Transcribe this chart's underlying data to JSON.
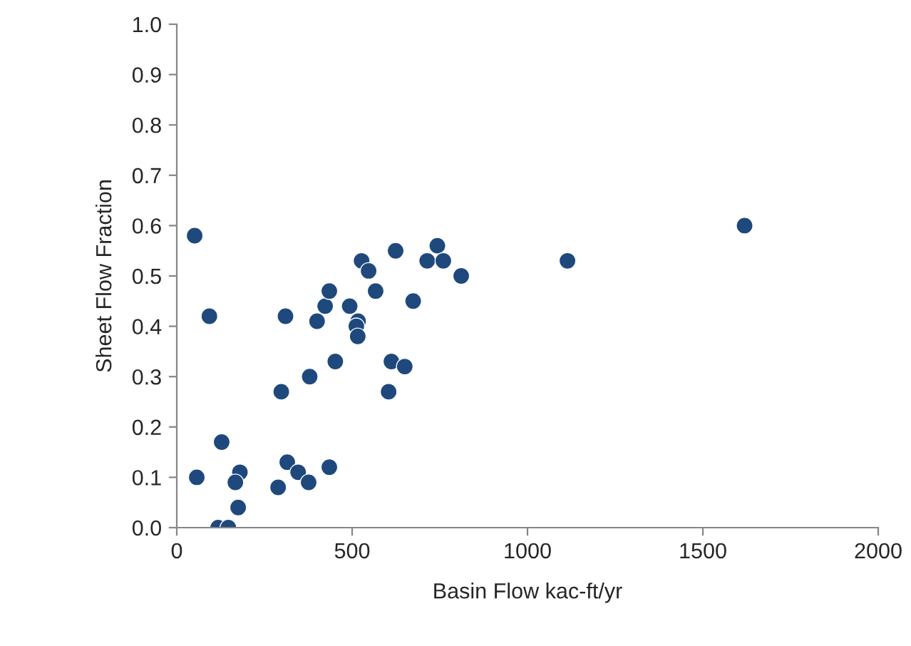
{
  "chart_data": {
    "type": "scatter",
    "xlabel": "Basin Flow kac-ft/yr",
    "ylabel": "Sheet Flow Fraction",
    "x": [
      51,
      93,
      57,
      128,
      180,
      167,
      175,
      118,
      147,
      289,
      315,
      346,
      376,
      435,
      298,
      379,
      452,
      310,
      400,
      423,
      435,
      493,
      517,
      512,
      516,
      527,
      547,
      567,
      624,
      612,
      650,
      604,
      674,
      714,
      743,
      760,
      811,
      1114,
      1619
    ],
    "series": [
      {
        "color": "#1f497d",
        "values": [
          0.58,
          0.42,
          0.1,
          0.17,
          0.11,
          0.09,
          0.04,
          0.0,
          0.0,
          0.08,
          0.13,
          0.11,
          0.09,
          0.12,
          0.27,
          0.3,
          0.33,
          0.42,
          0.41,
          0.44,
          0.47,
          0.44,
          0.41,
          0.4,
          0.38,
          0.53,
          0.51,
          0.47,
          0.55,
          0.33,
          0.32,
          0.27,
          0.45,
          0.53,
          0.56,
          0.53,
          0.5,
          0.53,
          0.6
        ]
      }
    ],
    "xlim": [
      0,
      2000
    ],
    "xticks": [
      0,
      500,
      1000,
      1500,
      2000
    ],
    "ylim": [
      0,
      1.0
    ],
    "yticks": [
      {
        "value": 0,
        "label": "0.0"
      },
      {
        "value": 0.1,
        "label": "0.1"
      },
      {
        "value": 0.2,
        "label": "0.2"
      },
      {
        "value": 0.3,
        "label": "0.3"
      },
      {
        "value": 0.4,
        "label": "0.4"
      },
      {
        "value": 0.5,
        "label": "0.5"
      },
      {
        "value": 0.6,
        "label": "0.6"
      },
      {
        "value": 0.7,
        "label": "0.7"
      },
      {
        "value": 0.8,
        "label": "0.8"
      },
      {
        "value": 0.9,
        "label": "0.9"
      },
      {
        "value": 1.0,
        "label": "1.0"
      }
    ],
    "marker": "circle",
    "grid": false
  }
}
